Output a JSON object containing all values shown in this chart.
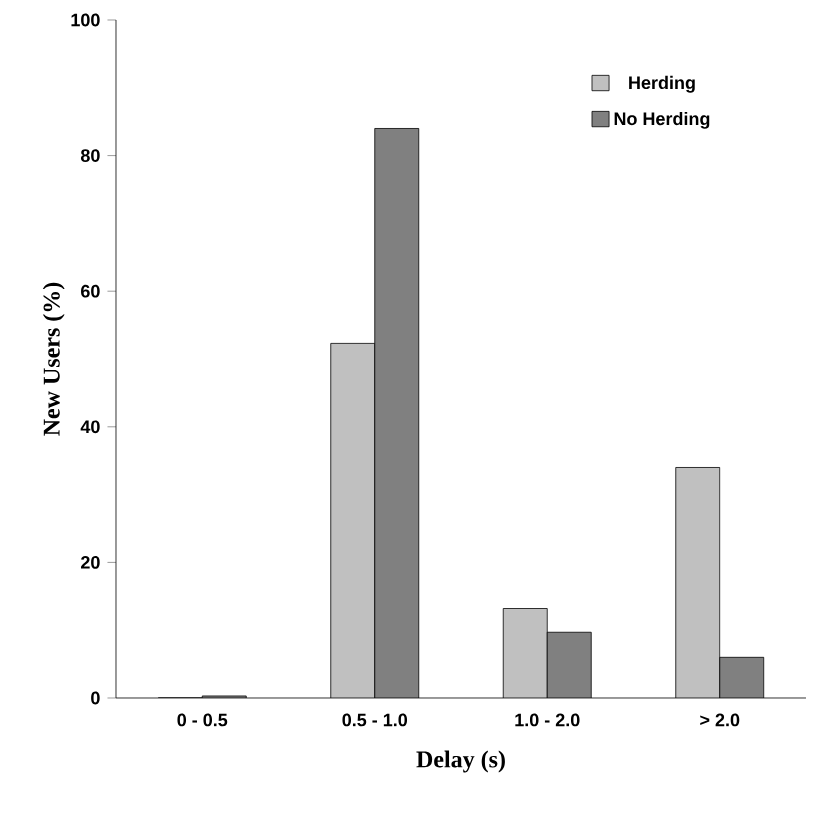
{
  "chart_data": {
    "type": "bar",
    "xlabel": "Delay (s)",
    "ylabel": "New Users (%)",
    "categories": [
      "0 - 0.5",
      "0.5 - 1.0",
      "1.0 - 2.0",
      "> 2.0"
    ],
    "series": [
      {
        "name": "Herding",
        "color": "#c0c0c0",
        "values": [
          0,
          52.3,
          13.2,
          34
        ]
      },
      {
        "name": "No Herding",
        "color": "#808080",
        "values": [
          0.3,
          84,
          9.7,
          6
        ]
      }
    ],
    "ylim": [
      0,
      100
    ],
    "yticks": [
      0,
      20,
      40,
      60,
      80,
      100
    ],
    "legend": "top right",
    "grid": false
  }
}
